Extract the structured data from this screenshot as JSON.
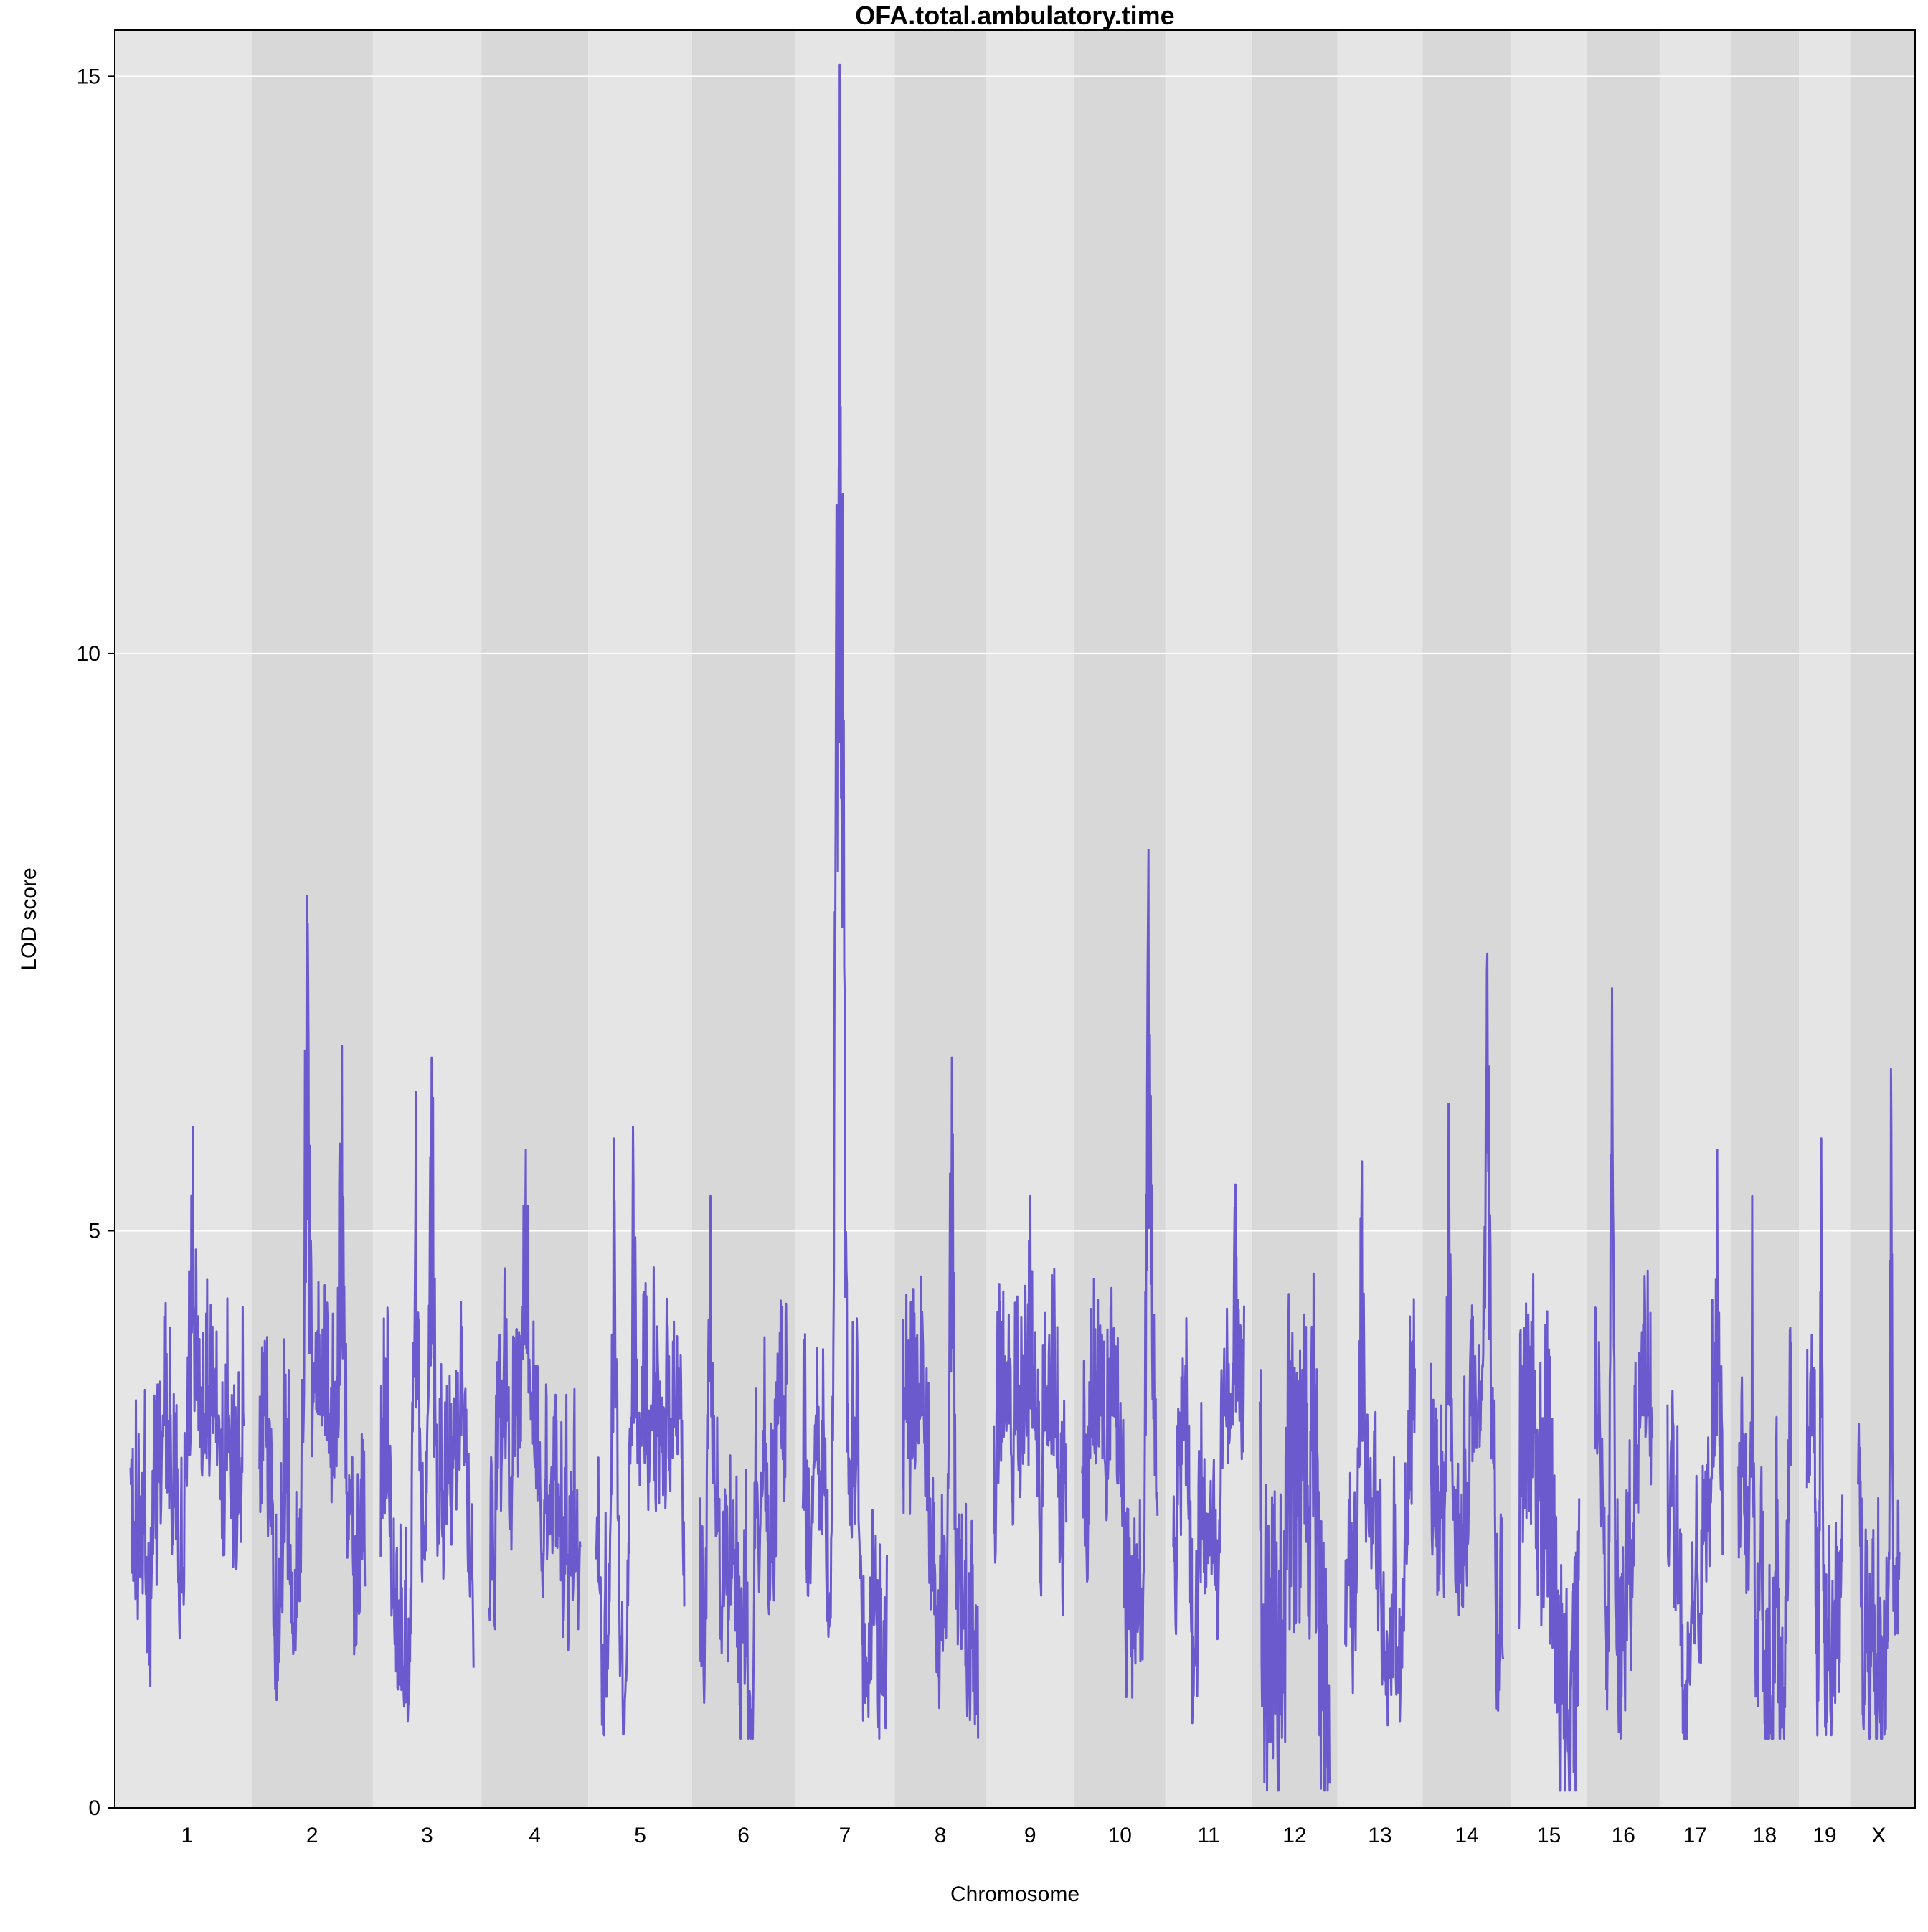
{
  "chart_data": {
    "type": "line",
    "title": "OFA.total.ambulatory.time",
    "xlabel": "Chromosome",
    "ylabel": "LOD score",
    "ylim": [
      0,
      15.4
    ],
    "yticks": [
      0,
      5,
      10,
      15
    ],
    "grid": true,
    "colors": {
      "line": "#6A5ACD",
      "band_light": "#E5E5E5",
      "band_dark": "#D8D8D8",
      "gridline": "#FFFFFF"
    },
    "chromosomes": [
      "1",
      "2",
      "3",
      "4",
      "5",
      "6",
      "7",
      "8",
      "9",
      "10",
      "11",
      "12",
      "13",
      "14",
      "15",
      "16",
      "17",
      "18",
      "19",
      "X"
    ],
    "chromosome_lengths": [
      195,
      182,
      160,
      157,
      152,
      150,
      145,
      130,
      125,
      130,
      122,
      120,
      120,
      125,
      104,
      98,
      95,
      91,
      61,
      71
    ],
    "series": [
      {
        "peaks": [
          {
            "chr": "1",
            "pos": 0.55,
            "lod": 5.9
          },
          {
            "chr": "2",
            "pos": 0.45,
            "lod": 7.9
          },
          {
            "chr": "2",
            "pos": 0.78,
            "lod": 6.6
          },
          {
            "chr": "3",
            "pos": 0.38,
            "lod": 6.2
          },
          {
            "chr": "3",
            "pos": 0.55,
            "lod": 6.5
          },
          {
            "chr": "4",
            "pos": 0.4,
            "lod": 5.7
          },
          {
            "chr": "5",
            "pos": 0.2,
            "lod": 5.8
          },
          {
            "chr": "5",
            "pos": 0.42,
            "lod": 5.9
          },
          {
            "chr": "6",
            "pos": 0.12,
            "lod": 5.3
          },
          {
            "chr": "7",
            "pos": 0.44,
            "lod": 15.1
          },
          {
            "chr": "8",
            "pos": 0.65,
            "lod": 6.5
          },
          {
            "chr": "9",
            "pos": 0.5,
            "lod": 5.3
          },
          {
            "chr": "10",
            "pos": 0.88,
            "lod": 8.3
          },
          {
            "chr": "11",
            "pos": 0.88,
            "lod": 5.4
          },
          {
            "chr": "13",
            "pos": 0.24,
            "lod": 5.6
          },
          {
            "chr": "14",
            "pos": 0.25,
            "lod": 6.1
          },
          {
            "chr": "14",
            "pos": 0.78,
            "lod": 7.4
          },
          {
            "chr": "16",
            "pos": 0.3,
            "lod": 7.1
          },
          {
            "chr": "17",
            "pos": 0.9,
            "lod": 5.7
          },
          {
            "chr": "18",
            "pos": 0.26,
            "lod": 5.3
          },
          {
            "chr": "19",
            "pos": 0.4,
            "lod": 5.8
          },
          {
            "chr": "X",
            "pos": 0.8,
            "lod": 6.4
          }
        ]
      }
    ]
  }
}
